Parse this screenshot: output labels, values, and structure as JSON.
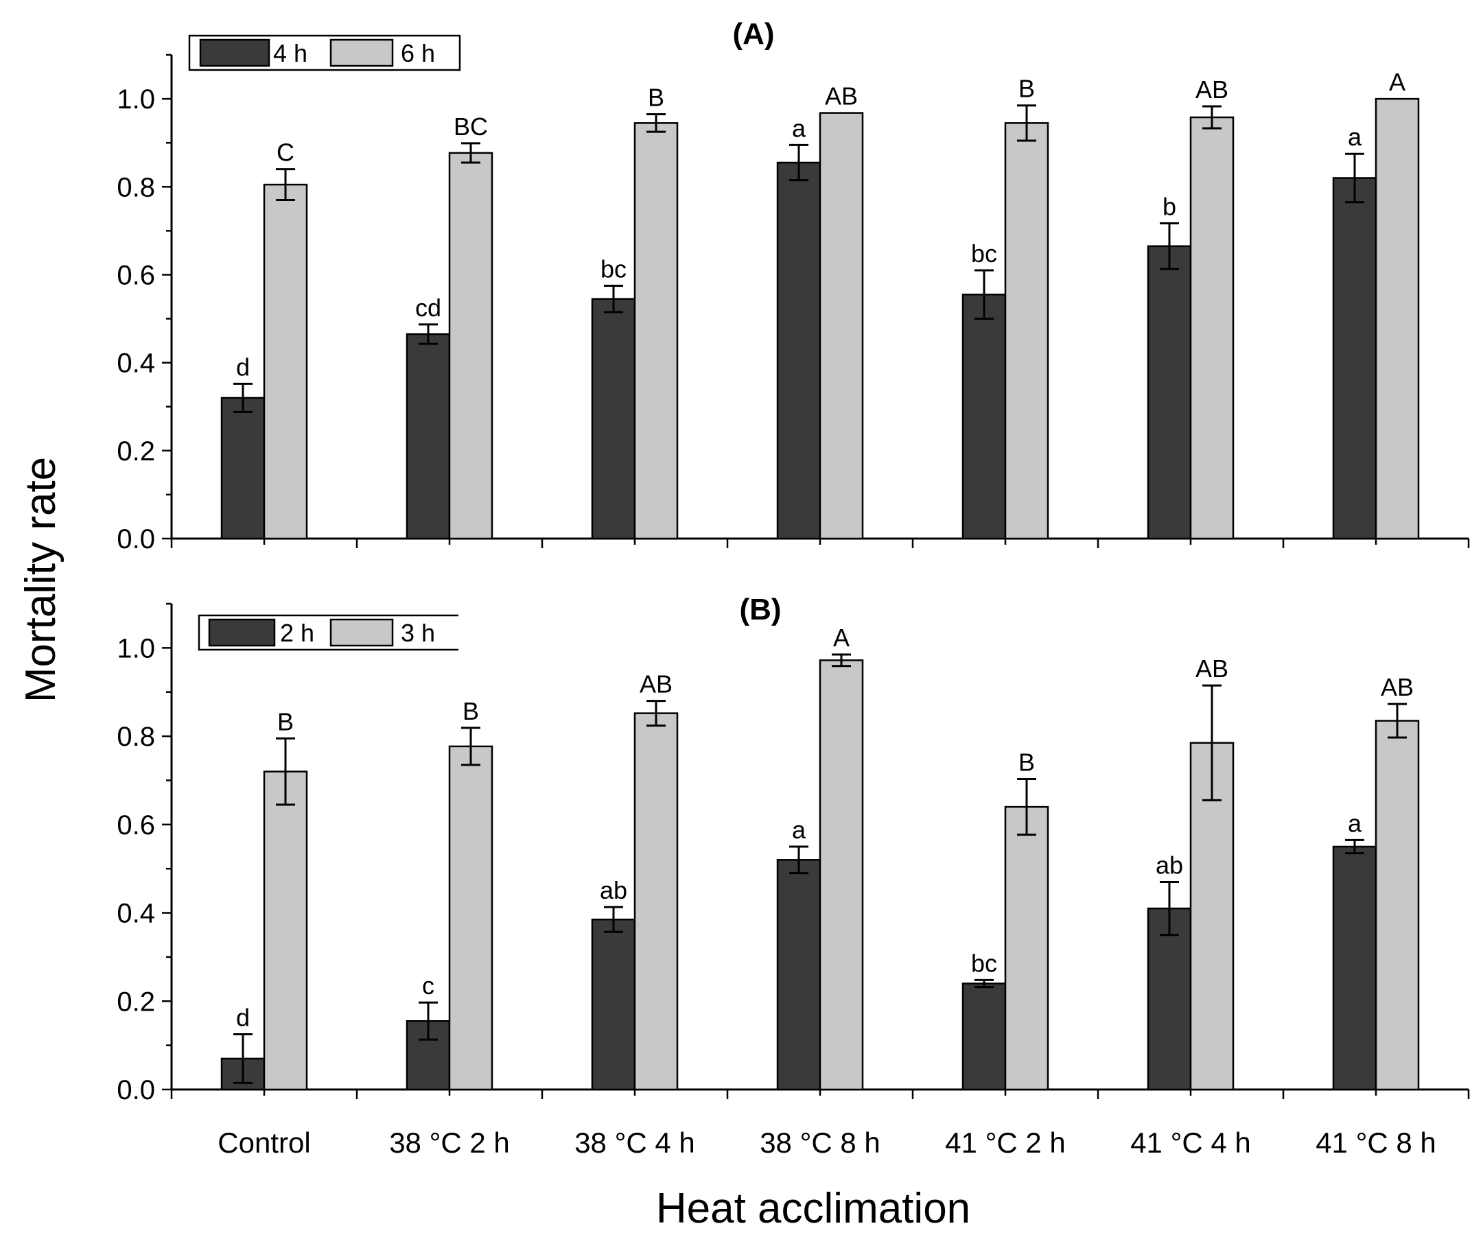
{
  "chart_data": {
    "type": "bar",
    "ylabel": "Mortality rate",
    "xlabel": "Heat acclimation",
    "categories": [
      "Control",
      "38 °C 2 h",
      "38 °C 4 h",
      "38 °C 8 h",
      "41 °C 2 h",
      "41 °C 4 h",
      "41 °C 8 h"
    ],
    "ylim": [
      0,
      1.1
    ],
    "yticks": [
      "0.0",
      "0.2",
      "0.4",
      "0.6",
      "0.8",
      "1.0"
    ],
    "ytick_values": [
      0,
      0.2,
      0.4,
      0.6,
      0.8,
      1.0
    ],
    "panels": [
      {
        "title": "(A)",
        "series": [
          {
            "name": "4 h",
            "values": [
              0.32,
              0.465,
              0.545,
              0.855,
              0.555,
              0.665,
              0.82
            ],
            "errors": [
              0.032,
              0.022,
              0.03,
              0.04,
              0.055,
              0.052,
              0.055
            ],
            "letters": [
              "d",
              "cd",
              "bc",
              "a",
              "bc",
              "b",
              "a"
            ]
          },
          {
            "name": "6 h",
            "values": [
              0.805,
              0.877,
              0.945,
              0.968,
              0.945,
              0.958,
              1.0
            ],
            "errors": [
              0.035,
              0.022,
              0.02,
              0.0,
              0.04,
              0.025,
              0.0
            ],
            "letters": [
              "C",
              "BC",
              "B",
              "AB",
              "B",
              "AB",
              "A"
            ]
          }
        ]
      },
      {
        "title": "(B)",
        "series": [
          {
            "name": "2 h",
            "values": [
              0.07,
              0.155,
              0.385,
              0.52,
              0.24,
              0.41,
              0.55
            ],
            "errors": [
              0.055,
              0.042,
              0.028,
              0.03,
              0.008,
              0.06,
              0.015
            ],
            "letters": [
              "d",
              "c",
              "ab",
              "a",
              "bc",
              "ab",
              "a"
            ]
          },
          {
            "name": "3 h",
            "values": [
              0.72,
              0.777,
              0.852,
              0.972,
              0.64,
              0.785,
              0.835
            ],
            "errors": [
              0.075,
              0.042,
              0.028,
              0.013,
              0.063,
              0.13,
              0.038
            ],
            "letters": [
              "B",
              "B",
              "AB",
              "A",
              "B",
              "AB",
              "AB"
            ]
          }
        ]
      }
    ]
  }
}
